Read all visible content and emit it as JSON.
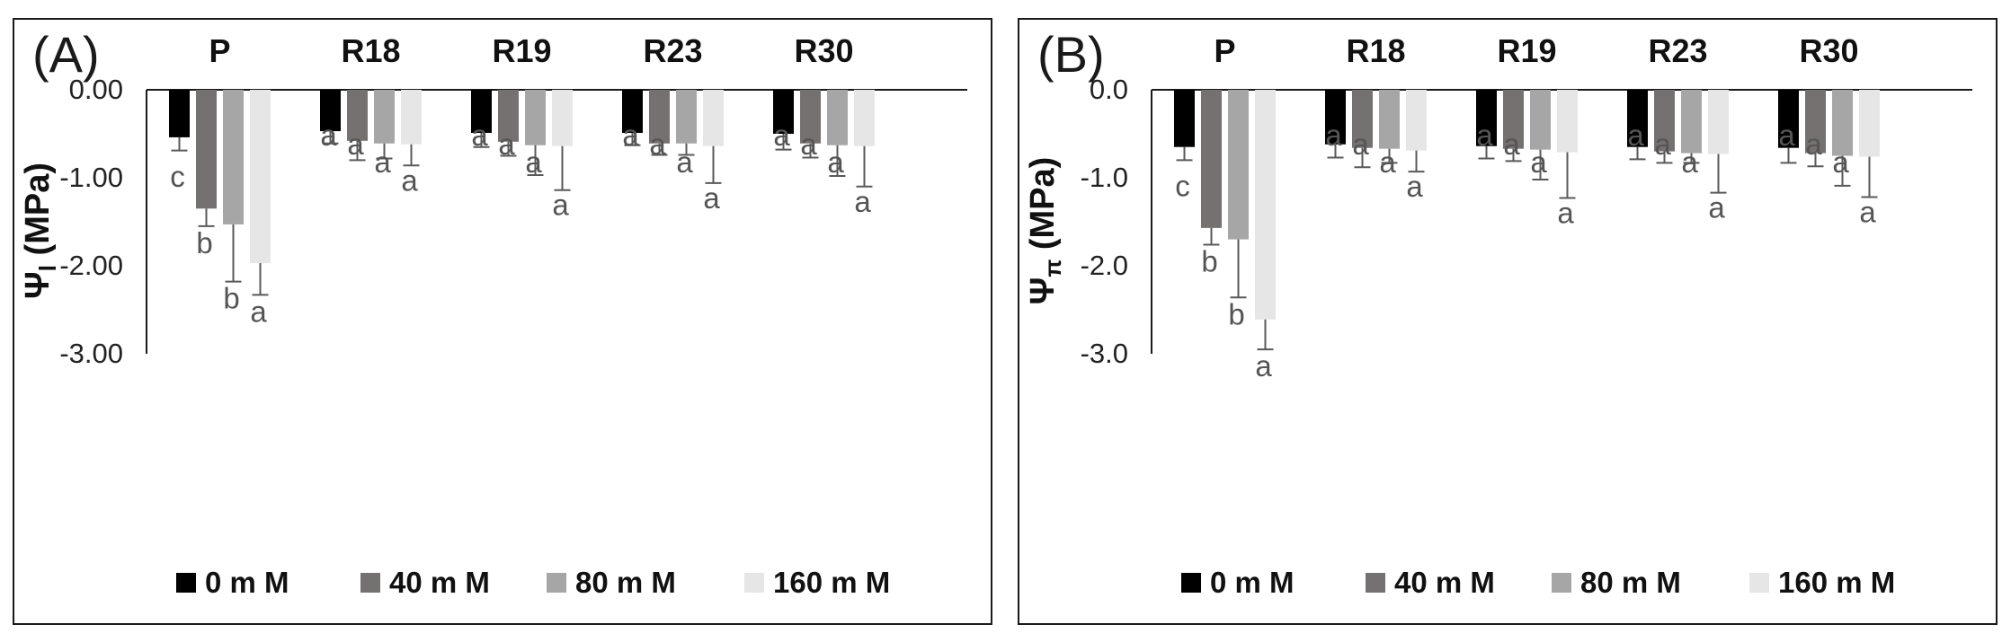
{
  "chart_data": [
    {
      "type": "bar",
      "panel_label": "(A)",
      "ylabel_symbol": "Ψ",
      "ylabel_subscript": "l",
      "ylabel_unit": " (MPa)",
      "ylim": [
        -3.0,
        0.0
      ],
      "yticks": [
        0.0,
        -1.0,
        -2.0,
        -3.0
      ],
      "ytick_labels": [
        "0.00",
        "-1.00",
        "-2.00",
        "-3.00"
      ],
      "categories": [
        "P",
        "R18",
        "R19",
        "R23",
        "R30"
      ],
      "series": [
        {
          "name": "0 m M",
          "color": "#000000",
          "values": [
            -0.54,
            -0.47,
            -0.49,
            -0.49,
            -0.5
          ],
          "errors": [
            0.15,
            0.14,
            0.16,
            0.14,
            0.18
          ]
        },
        {
          "name": "40 m M",
          "color": "#767171",
          "values": [
            -1.35,
            -0.58,
            -0.59,
            -0.61,
            -0.61
          ],
          "errors": [
            0.2,
            0.22,
            0.16,
            0.13,
            0.16
          ]
        },
        {
          "name": "80 m M",
          "color": "#a6a6a6",
          "values": [
            -1.53,
            -0.61,
            -0.63,
            -0.61,
            -0.63
          ],
          "errors": [
            0.65,
            0.17,
            0.34,
            0.13,
            0.35
          ]
        },
        {
          "name": "160 m M",
          "color": "#e7e6e6",
          "values": [
            -1.97,
            -0.62,
            -0.64,
            -0.64,
            -0.64
          ],
          "errors": [
            0.36,
            0.24,
            0.5,
            0.42,
            0.46
          ]
        }
      ],
      "significance": [
        [
          "c",
          "b",
          "b",
          "a"
        ],
        [
          "a",
          "a",
          "a",
          "a"
        ],
        [
          "a",
          "a",
          "a",
          "a"
        ],
        [
          "a",
          "a",
          "a",
          "a"
        ],
        [
          "a",
          "a",
          "a",
          "a"
        ]
      ],
      "legend": "bottom"
    },
    {
      "type": "bar",
      "panel_label": "(B)",
      "ylabel_symbol": "Ψ",
      "ylabel_subscript": "π",
      "ylabel_unit": " (MPa)",
      "ylim": [
        -3.0,
        0.0
      ],
      "yticks": [
        0.0,
        -1.0,
        -2.0,
        -3.0
      ],
      "ytick_labels": [
        "0.0",
        "-1.0",
        "-2.0",
        "-3.0"
      ],
      "categories": [
        "P",
        "R18",
        "R19",
        "R23",
        "R30"
      ],
      "series": [
        {
          "name": "0 m M",
          "color": "#000000",
          "values": [
            -0.65,
            -0.62,
            -0.64,
            -0.65,
            -0.66
          ],
          "errors": [
            0.15,
            0.15,
            0.14,
            0.14,
            0.17
          ]
        },
        {
          "name": "40 m M",
          "color": "#767171",
          "values": [
            -1.57,
            -0.66,
            -0.67,
            -0.7,
            -0.72
          ],
          "errors": [
            0.19,
            0.22,
            0.14,
            0.13,
            0.15
          ]
        },
        {
          "name": "80 m M",
          "color": "#a6a6a6",
          "values": [
            -1.7,
            -0.67,
            -0.68,
            -0.72,
            -0.75
          ],
          "errors": [
            0.66,
            0.16,
            0.34,
            0.11,
            0.34
          ]
        },
        {
          "name": "160 m M",
          "color": "#e7e6e6",
          "values": [
            -2.61,
            -0.69,
            -0.71,
            -0.73,
            -0.76
          ],
          "errors": [
            0.34,
            0.24,
            0.52,
            0.44,
            0.46
          ]
        }
      ],
      "significance": [
        [
          "c",
          "b",
          "b",
          "a"
        ],
        [
          "a",
          "a",
          "a",
          "a"
        ],
        [
          "a",
          "a",
          "a",
          "a"
        ],
        [
          "a",
          "a",
          "a",
          "a"
        ],
        [
          "a",
          "a",
          "a",
          "a"
        ]
      ],
      "legend": "bottom"
    }
  ]
}
